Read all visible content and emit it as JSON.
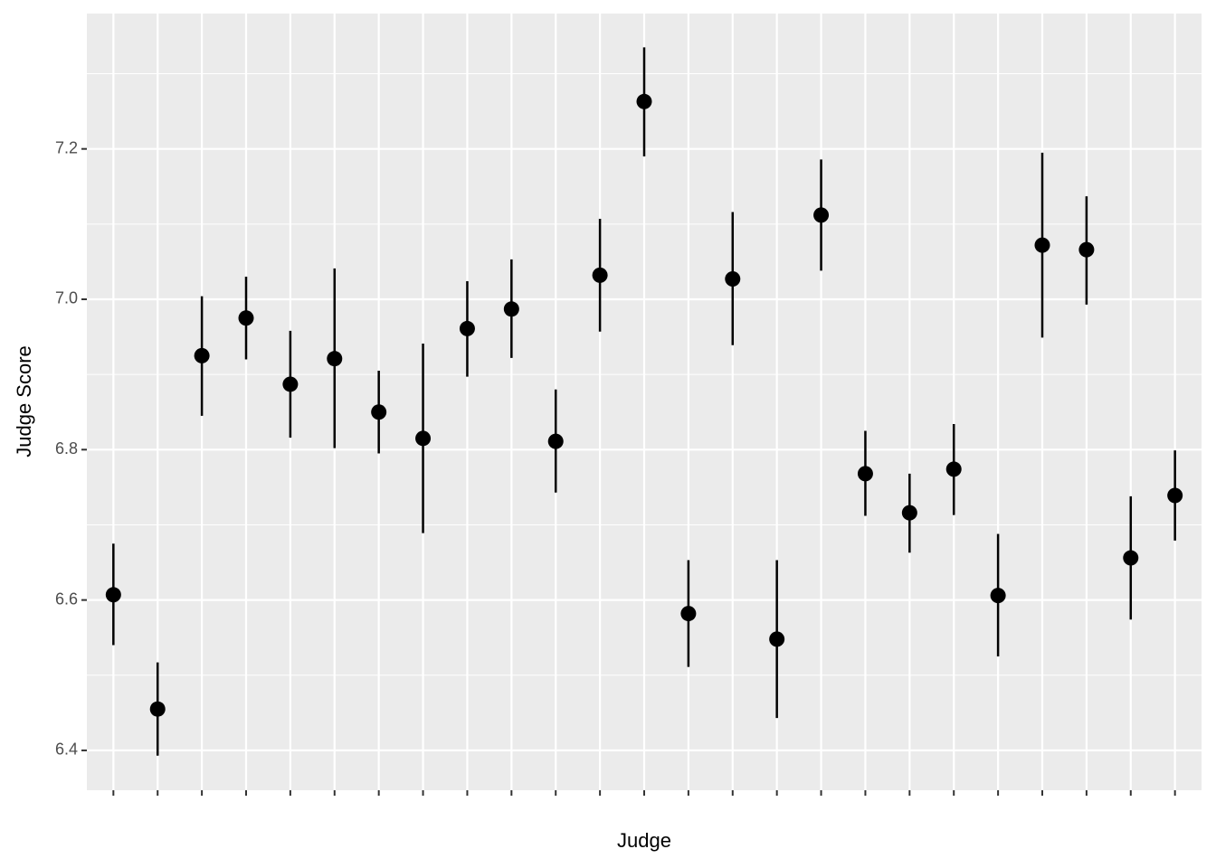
{
  "chart_data": {
    "type": "pointrange",
    "x_label": "Judge",
    "y_label": "Judge Score",
    "categories": [
      null,
      null,
      null,
      null,
      null,
      null,
      null,
      null,
      null,
      null,
      null,
      null,
      null,
      null,
      null,
      null,
      null,
      null,
      null,
      null,
      null,
      null,
      null,
      null,
      null
    ],
    "series": [
      {
        "color": "#000000",
        "values": [
          6.607,
          6.455,
          6.925,
          6.975,
          6.887,
          6.921,
          6.85,
          6.815,
          6.961,
          6.987,
          6.811,
          7.032,
          7.263,
          6.582,
          7.027,
          6.548,
          7.112,
          6.768,
          6.716,
          6.774,
          6.606,
          7.072,
          7.066,
          6.656,
          6.739
        ],
        "low": [
          6.54,
          6.393,
          6.845,
          6.92,
          6.816,
          6.802,
          6.795,
          6.689,
          6.897,
          6.922,
          6.743,
          6.957,
          7.19,
          6.511,
          6.939,
          6.443,
          7.038,
          6.712,
          6.663,
          6.713,
          6.525,
          6.949,
          6.993,
          6.574,
          6.679
        ],
        "high": [
          6.675,
          6.517,
          7.004,
          7.03,
          6.958,
          7.041,
          6.905,
          6.941,
          7.024,
          7.053,
          6.88,
          7.107,
          7.335,
          6.653,
          7.116,
          6.653,
          7.186,
          6.825,
          6.768,
          6.834,
          6.688,
          7.195,
          7.137,
          6.738,
          6.799
        ]
      }
    ],
    "ylim": [
      6.347,
      7.38
    ],
    "yticks": [
      6.4,
      6.6,
      6.8,
      {
        "value": 7,
        "label": "7.0"
      },
      7.2
    ],
    "minor_yticks": [
      6.5,
      6.7,
      6.9,
      7.1,
      7.3
    ],
    "grid": true,
    "panel_color": "#ebebeb"
  }
}
